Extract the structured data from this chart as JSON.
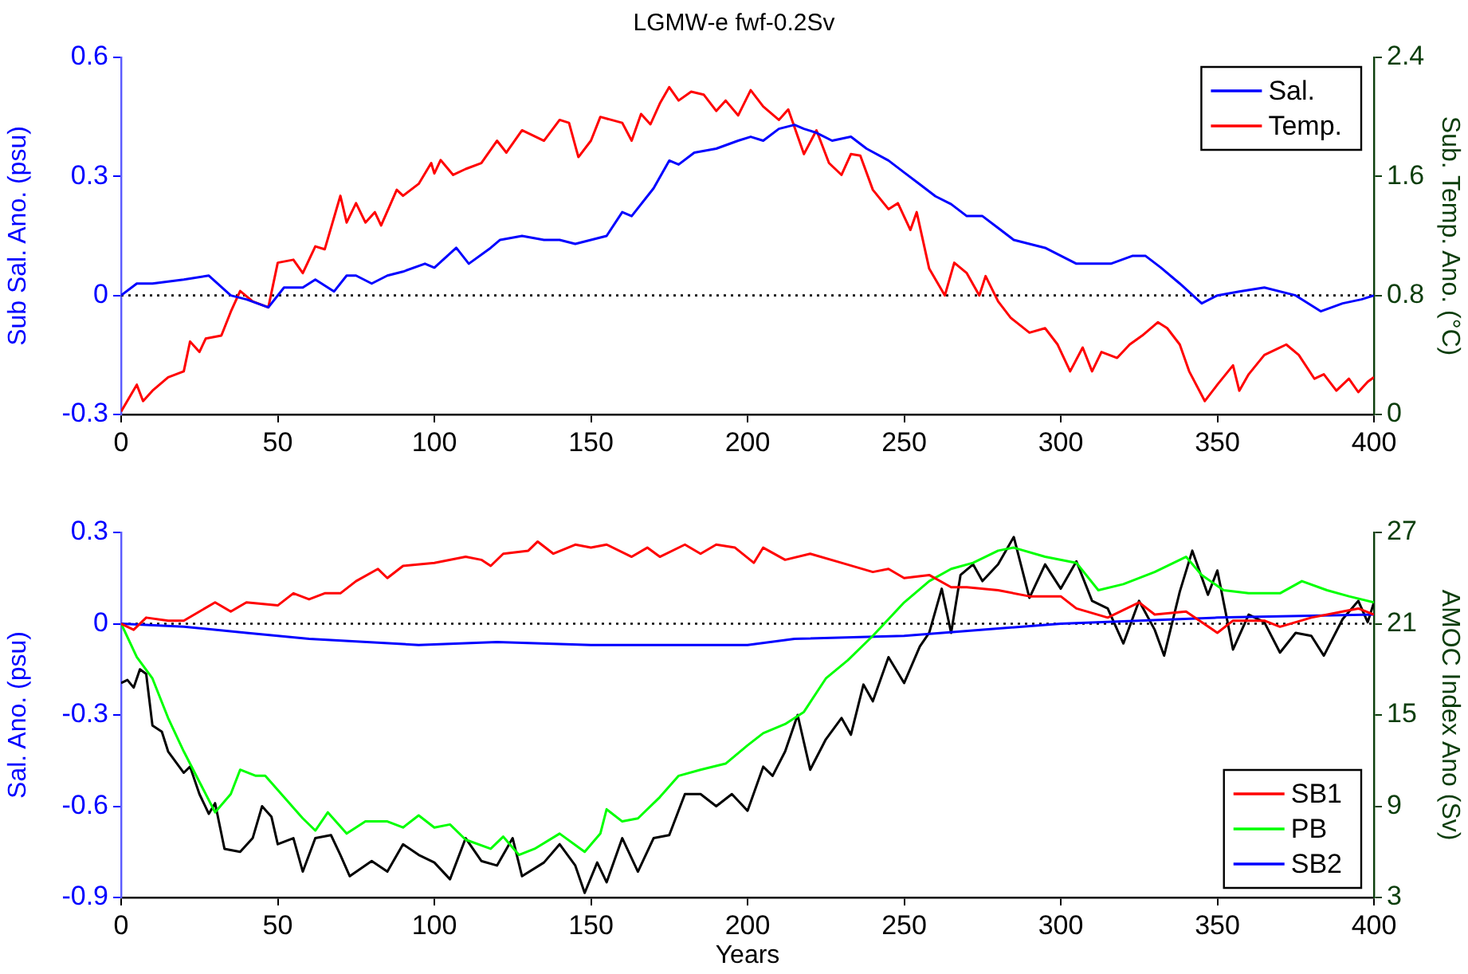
{
  "chart_data": [
    {
      "type": "line",
      "title": "LGMW-e fwf-0.2Sv",
      "ylabel": "Sub Sal. Ano. (psu)",
      "y2label": "Sub. Temp. Ano. (°C)",
      "xlim": [
        0,
        400
      ],
      "xticks": [
        0,
        50,
        100,
        150,
        200,
        250,
        300,
        350,
        400
      ],
      "ylim": [
        -0.3,
        0.6
      ],
      "yticks": [
        -0.3,
        0,
        0.3,
        0.6
      ],
      "y2lim": [
        0,
        2.4
      ],
      "y2ticks": [
        0,
        0.8,
        1.6,
        2.4
      ],
      "legend": "top right",
      "ref_lines": [
        {
          "axis": "y",
          "value": 0,
          "color": "#000000",
          "line_style": "dotted"
        }
      ],
      "series": [
        {
          "name": "Sal.",
          "color": "#0000ff",
          "x": [
            0,
            5,
            10,
            20,
            28,
            35,
            40,
            47,
            52,
            58,
            62,
            68,
            72,
            75,
            80,
            85,
            90,
            97,
            100,
            107,
            111,
            118,
            121,
            128,
            135,
            140,
            145,
            150,
            155,
            160,
            163,
            170,
            175,
            178,
            183,
            190,
            197,
            201,
            205,
            210,
            215,
            218,
            222,
            227,
            233,
            238,
            245,
            250,
            255,
            260,
            265,
            270,
            275,
            280,
            285,
            290,
            295,
            300,
            305,
            310,
            316,
            323,
            327,
            332,
            338,
            345,
            350,
            357,
            365,
            375,
            383,
            390,
            396,
            400
          ],
          "values": [
            0,
            0.03,
            0.03,
            0.04,
            0.05,
            0,
            -0.01,
            -0.03,
            0.02,
            0.02,
            0.04,
            0.01,
            0.05,
            0.05,
            0.03,
            0.05,
            0.06,
            0.08,
            0.07,
            0.12,
            0.08,
            0.12,
            0.14,
            0.15,
            0.14,
            0.14,
            0.13,
            0.14,
            0.15,
            0.21,
            0.2,
            0.27,
            0.34,
            0.33,
            0.36,
            0.37,
            0.39,
            0.4,
            0.39,
            0.42,
            0.43,
            0.42,
            0.41,
            0.39,
            0.4,
            0.37,
            0.34,
            0.31,
            0.28,
            0.25,
            0.23,
            0.2,
            0.2,
            0.17,
            0.14,
            0.13,
            0.12,
            0.1,
            0.08,
            0.08,
            0.08,
            0.1,
            0.1,
            0.07,
            0.03,
            -0.02,
            0,
            0.01,
            0.02,
            0,
            -0.04,
            -0.02,
            -0.01,
            0
          ]
        },
        {
          "name": "Temp.",
          "color": "#ff0000",
          "axis": "y2",
          "x": [
            0,
            5,
            7,
            10,
            15,
            20,
            22,
            25,
            27,
            32,
            35,
            38,
            42,
            47,
            50,
            55,
            58,
            62,
            65,
            70,
            72,
            75,
            78,
            81,
            83,
            88,
            90,
            95,
            99,
            100,
            102,
            106,
            110,
            115,
            120,
            123,
            128,
            135,
            140,
            143,
            146,
            150,
            153,
            160,
            163,
            166,
            169,
            172,
            175,
            178,
            182,
            186,
            190,
            193,
            197,
            201,
            205,
            210,
            213,
            218,
            222,
            226,
            230,
            233,
            236,
            240,
            245,
            248,
            252,
            254,
            258,
            263,
            266,
            270,
            274,
            276,
            280,
            284,
            290,
            295,
            299,
            303,
            307,
            310,
            313,
            318,
            322,
            326,
            331,
            334,
            338,
            341,
            346,
            350,
            355,
            357,
            360,
            365,
            369,
            372,
            376,
            381,
            384,
            388,
            392,
            395,
            398,
            400
          ],
          "values": [
            0.02,
            0.2,
            0.09,
            0.16,
            0.25,
            0.29,
            0.49,
            0.42,
            0.51,
            0.53,
            0.69,
            0.83,
            0.76,
            0.72,
            1.02,
            1.04,
            0.95,
            1.13,
            1.11,
            1.47,
            1.29,
            1.42,
            1.29,
            1.36,
            1.27,
            1.51,
            1.47,
            1.55,
            1.69,
            1.62,
            1.71,
            1.61,
            1.65,
            1.69,
            1.84,
            1.76,
            1.91,
            1.84,
            1.98,
            1.96,
            1.73,
            1.84,
            2,
            1.96,
            1.84,
            2.02,
            1.95,
            2.09,
            2.2,
            2.11,
            2.17,
            2.15,
            2.04,
            2.11,
            2.01,
            2.18,
            2.07,
            1.98,
            2.05,
            1.75,
            1.91,
            1.69,
            1.61,
            1.75,
            1.74,
            1.51,
            1.38,
            1.42,
            1.24,
            1.36,
            0.98,
            0.8,
            1.02,
            0.95,
            0.8,
            0.93,
            0.76,
            0.65,
            0.55,
            0.58,
            0.47,
            0.29,
            0.45,
            0.29,
            0.42,
            0.38,
            0.47,
            0.53,
            0.62,
            0.58,
            0.47,
            0.29,
            0.09,
            0.2,
            0.33,
            0.16,
            0.27,
            0.4,
            0.44,
            0.47,
            0.4,
            0.24,
            0.27,
            0.16,
            0.24,
            0.15,
            0.22,
            0.25
          ]
        }
      ]
    },
    {
      "type": "line",
      "xlabel": "Years",
      "ylabel": "Sal. Ano. (psu)",
      "y2label": "AMOC Index Ano (Sv)",
      "xlim": [
        0,
        400
      ],
      "xticks": [
        0,
        50,
        100,
        150,
        200,
        250,
        300,
        350,
        400
      ],
      "ylim": [
        -0.9,
        0.3
      ],
      "yticks": [
        -0.9,
        -0.6,
        -0.3,
        0,
        0.3
      ],
      "y2lim": [
        3,
        27
      ],
      "y2ticks": [
        3,
        9,
        15,
        21,
        27
      ],
      "legend": "bottom right",
      "ref_lines": [
        {
          "axis": "y",
          "value": 0,
          "color": "#000000",
          "line_style": "dotted"
        }
      ],
      "series": [
        {
          "name": "SB1",
          "color": "#ff0000",
          "x": [
            0,
            4,
            8,
            15,
            20,
            25,
            30,
            35,
            40,
            50,
            55,
            60,
            65,
            70,
            75,
            82,
            85,
            90,
            100,
            110,
            115,
            118,
            122,
            130,
            133,
            138,
            145,
            150,
            155,
            163,
            168,
            172,
            180,
            185,
            190,
            196,
            202,
            205,
            212,
            220,
            230,
            240,
            245,
            250,
            258,
            265,
            270,
            280,
            290,
            300,
            305,
            315,
            325,
            330,
            340,
            350,
            355,
            365,
            370,
            380,
            390,
            395,
            400
          ],
          "values": [
            0,
            -0.02,
            0.02,
            0.01,
            0.01,
            0.04,
            0.07,
            0.04,
            0.07,
            0.06,
            0.1,
            0.08,
            0.1,
            0.1,
            0.14,
            0.18,
            0.15,
            0.19,
            0.2,
            0.22,
            0.21,
            0.19,
            0.23,
            0.24,
            0.27,
            0.23,
            0.26,
            0.25,
            0.26,
            0.22,
            0.25,
            0.22,
            0.26,
            0.23,
            0.26,
            0.25,
            0.2,
            0.25,
            0.21,
            0.23,
            0.2,
            0.17,
            0.18,
            0.15,
            0.16,
            0.12,
            0.12,
            0.11,
            0.09,
            0.09,
            0.05,
            0.02,
            0.07,
            0.03,
            0.04,
            -0.03,
            0.01,
            0.01,
            -0.01,
            0.02,
            0.04,
            0.05,
            0.03
          ]
        },
        {
          "name": "PB",
          "color": "#00ff00",
          "x": [
            0,
            5,
            10,
            15,
            20,
            25,
            30,
            35,
            38,
            43,
            46,
            52,
            58,
            62,
            66,
            72,
            78,
            85,
            90,
            95,
            100,
            105,
            110,
            118,
            122,
            127,
            132,
            140,
            148,
            153,
            155,
            160,
            165,
            172,
            178,
            185,
            193,
            200,
            205,
            212,
            218,
            225,
            232,
            240,
            250,
            258,
            265,
            272,
            280,
            285,
            295,
            305,
            312,
            320,
            330,
            340,
            345,
            352,
            360,
            370,
            377,
            385,
            392,
            400
          ],
          "values": [
            0,
            -0.11,
            -0.18,
            -0.31,
            -0.42,
            -0.52,
            -0.62,
            -0.56,
            -0.48,
            -0.5,
            -0.5,
            -0.57,
            -0.64,
            -0.68,
            -0.62,
            -0.69,
            -0.65,
            -0.65,
            -0.67,
            -0.63,
            -0.67,
            -0.66,
            -0.71,
            -0.74,
            -0.7,
            -0.76,
            -0.74,
            -0.69,
            -0.75,
            -0.69,
            -0.61,
            -0.65,
            -0.64,
            -0.57,
            -0.5,
            -0.48,
            -0.46,
            -0.4,
            -0.36,
            -0.33,
            -0.29,
            -0.18,
            -0.12,
            -0.04,
            0.07,
            0.14,
            0.18,
            0.2,
            0.24,
            0.25,
            0.22,
            0.2,
            0.11,
            0.13,
            0.17,
            0.22,
            0.16,
            0.11,
            0.1,
            0.1,
            0.14,
            0.11,
            0.09,
            0.07
          ]
        },
        {
          "name": "SB2",
          "color": "#0000ff",
          "x": [
            0,
            20,
            40,
            60,
            95,
            120,
            150,
            180,
            200,
            215,
            250,
            300,
            350,
            400
          ],
          "values": [
            0,
            -0.01,
            -0.03,
            -0.05,
            -0.07,
            -0.06,
            -0.07,
            -0.07,
            -0.07,
            -0.05,
            -0.04,
            0,
            0.02,
            0.03
          ]
        },
        {
          "color": "#000000",
          "axis": "y2",
          "x": [
            0,
            2,
            4,
            6,
            8,
            10,
            13,
            15,
            20,
            22,
            25,
            28,
            30,
            33,
            38,
            42,
            45,
            48,
            50,
            55,
            58,
            62,
            67,
            70,
            73,
            80,
            85,
            90,
            95,
            100,
            105,
            110,
            115,
            120,
            125,
            128,
            135,
            140,
            145,
            148,
            152,
            155,
            160,
            165,
            170,
            175,
            180,
            185,
            190,
            195,
            200,
            205,
            208,
            212,
            216,
            220,
            225,
            230,
            233,
            237,
            240,
            245,
            250,
            255,
            258,
            262,
            265,
            268,
            272,
            275,
            280,
            285,
            290,
            295,
            300,
            305,
            310,
            315,
            320,
            325,
            330,
            333,
            338,
            342,
            347,
            350,
            355,
            360,
            365,
            370,
            375,
            380,
            384,
            390,
            395,
            398,
            400
          ],
          "values": [
            17.1,
            17.3,
            16.8,
            18,
            17.7,
            14.3,
            13.9,
            12.6,
            11.2,
            11.6,
            9.8,
            8.5,
            9.2,
            6.2,
            6,
            6.9,
            9,
            8.3,
            6.5,
            6.9,
            4.7,
            6.9,
            7.1,
            5.8,
            4.4,
            5.4,
            4.7,
            6.5,
            5.8,
            5.3,
            4.2,
            6.9,
            5.4,
            5.1,
            6.9,
            4.4,
            5.3,
            6.5,
            5.1,
            3.3,
            5.3,
            4,
            6.9,
            4.7,
            6.9,
            7.1,
            9.8,
            9.8,
            9,
            9.8,
            8.7,
            11.6,
            11,
            12.6,
            15,
            11.4,
            13.4,
            14.8,
            13.7,
            17,
            15.9,
            18.8,
            17.1,
            19.5,
            20.4,
            23.3,
            20.4,
            24.2,
            24.9,
            23.8,
            24.9,
            26.7,
            22.7,
            24.9,
            23.3,
            25.1,
            22.5,
            22,
            19.7,
            22.5,
            20.6,
            18.9,
            23.1,
            25.8,
            22.9,
            24.5,
            19.3,
            21.6,
            21.1,
            19.1,
            20.4,
            20.2,
            18.9,
            21.3,
            22.5,
            21.1,
            22.4
          ]
        }
      ]
    }
  ]
}
